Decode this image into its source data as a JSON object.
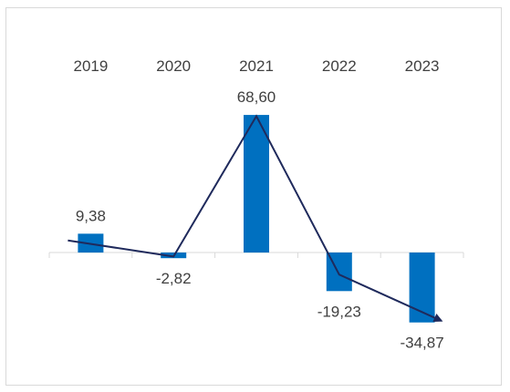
{
  "chart_data": {
    "type": "bar",
    "categories": [
      "2019",
      "2020",
      "2021",
      "2022",
      "2023"
    ],
    "values": [
      9.38,
      -2.82,
      68.6,
      -19.23,
      -34.87
    ],
    "value_labels": [
      "9,38",
      "-2,82",
      "68,60",
      "-19,23",
      "-34,87"
    ],
    "trend_line": {
      "x": [
        "2019",
        "2020",
        "2021",
        "2022",
        "2023"
      ],
      "y": [
        6.0,
        -2.0,
        68.0,
        -11.0,
        -34.0
      ],
      "arrow_end": true
    },
    "ylim": [
      -60,
      90
    ],
    "grid": false,
    "legend": "none",
    "category_axis_position": "top",
    "colors": {
      "bar": "#0070c0",
      "line": "#1f2a5c",
      "axis": "#d9d9d9",
      "text": "#404040"
    }
  }
}
